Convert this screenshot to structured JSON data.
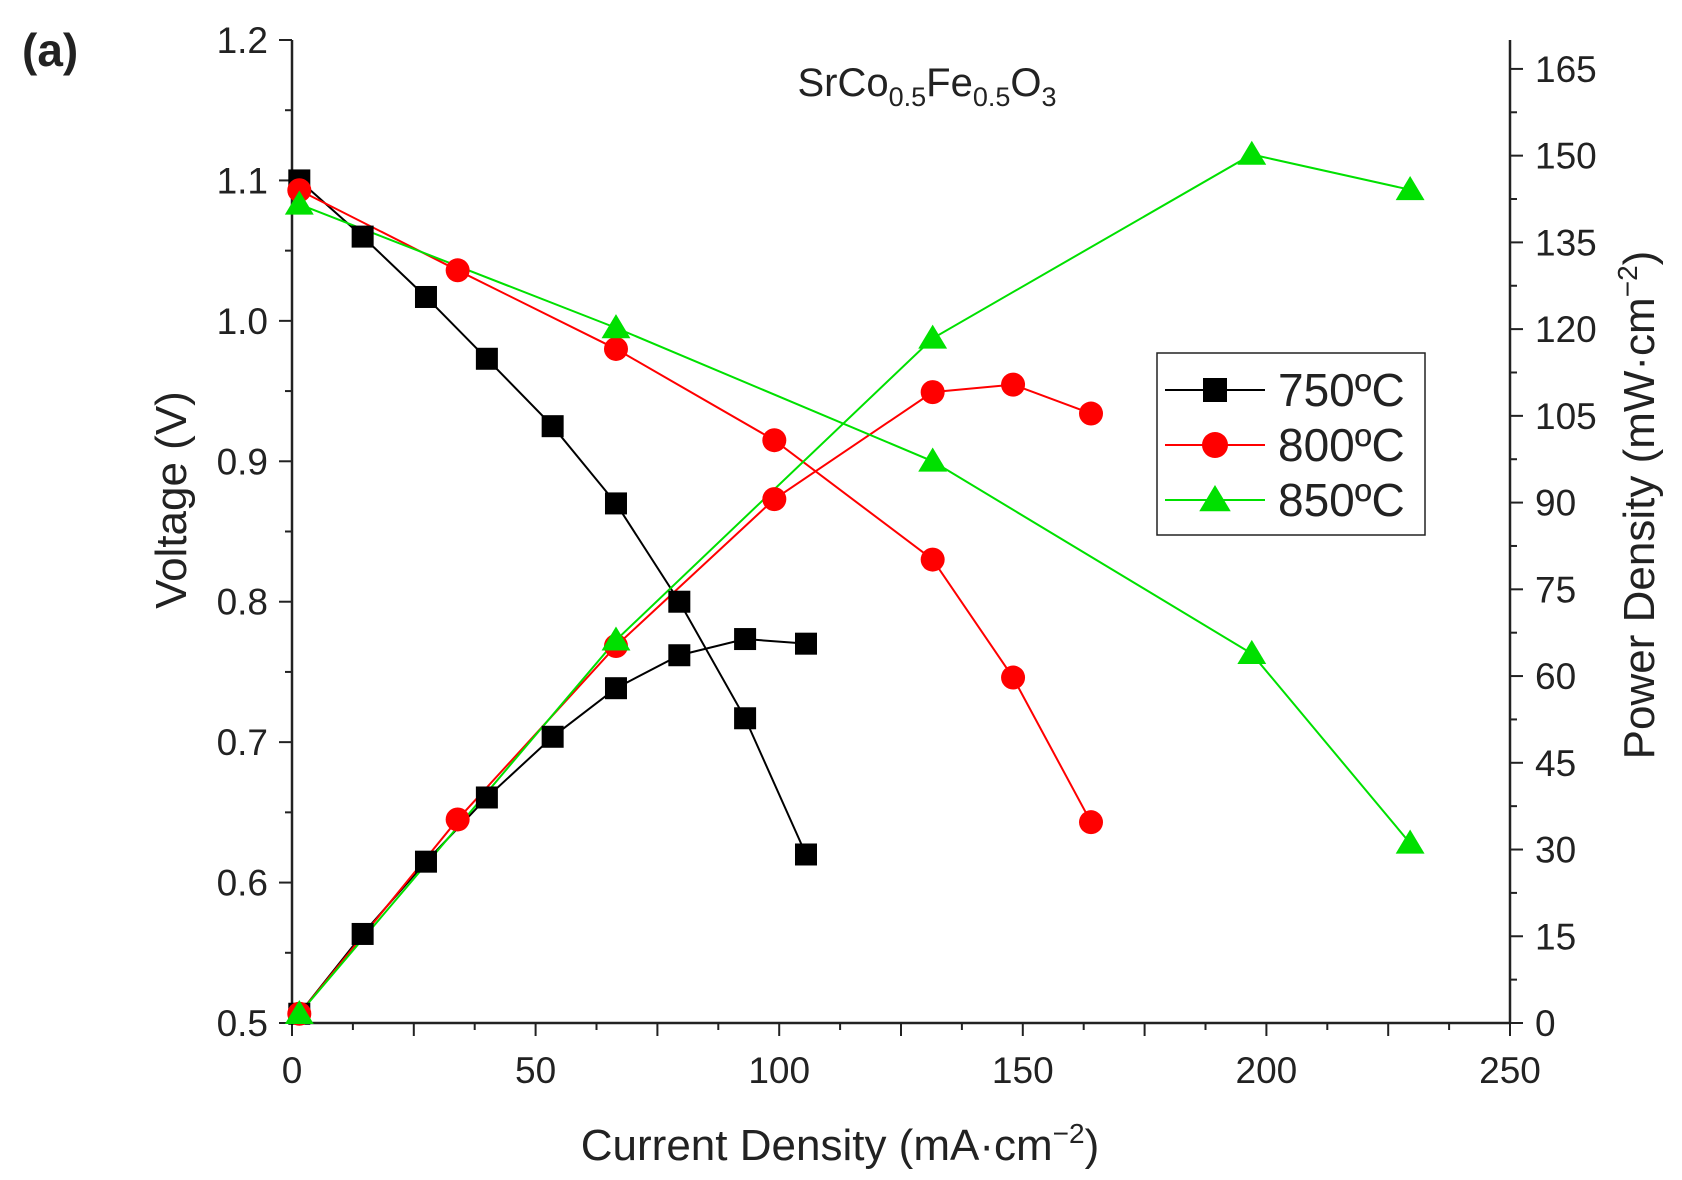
{
  "chart_data": {
    "type": "line",
    "panel_label": "(a)",
    "title": {
      "main": "SrCo",
      "sub1": "0.5",
      "mid": "Fe",
      "sub2": "0.5",
      "end": "O",
      "sub3": "3"
    },
    "xlabel": {
      "text": "Current Density (mA·cm",
      "sup": "−2",
      "close": ")"
    },
    "ylabel_left": "Voltage (V)",
    "ylabel_right": {
      "text": "Power Density (mW·cm",
      "sup": "−2",
      "close": ")"
    },
    "xlim": [
      0,
      250
    ],
    "ylim_left": [
      0.5,
      1.2
    ],
    "ylim_right": [
      0,
      170
    ],
    "x_ticks": [
      0,
      50,
      100,
      150,
      200,
      250
    ],
    "y_left_ticks": [
      0.5,
      0.6,
      0.7,
      0.8,
      0.9,
      1.0,
      1.1,
      1.2
    ],
    "y_left_tick_labels": [
      "0.5",
      "0.6",
      "0.7",
      "0.8",
      "0.9",
      "1.0",
      "1.1",
      "1.2"
    ],
    "y_right_ticks": [
      0,
      15,
      30,
      45,
      60,
      75,
      90,
      105,
      120,
      135,
      150,
      165
    ],
    "grid": false,
    "legend_position": "right-middle",
    "series": [
      {
        "name": "750ºC",
        "color": "#000000",
        "marker": "square",
        "voltage": {
          "x": [
            1.5,
            14.5,
            27.5,
            40,
            53.5,
            66.5,
            79.5,
            93,
            105.5
          ],
          "y": [
            1.1,
            1.06,
            1.017,
            0.973,
            0.925,
            0.87,
            0.8,
            0.717,
            0.62
          ]
        },
        "power": {
          "x": [
            1.5,
            14.5,
            27.5,
            40,
            53.5,
            66.5,
            79.5,
            93,
            105.5
          ],
          "y": [
            1.6,
            15.4,
            27.9,
            39.0,
            49.5,
            57.9,
            63.6,
            66.4,
            65.6
          ]
        }
      },
      {
        "name": "800ºC",
        "color": "#ff0000",
        "marker": "circle",
        "voltage": {
          "x": [
            1.5,
            34,
            66.5,
            99,
            131.5,
            148,
            164
          ],
          "y": [
            1.093,
            1.036,
            0.98,
            0.915,
            0.83,
            0.746,
            0.643
          ]
        },
        "power": {
          "x": [
            1.5,
            34,
            66.5,
            99,
            131.5,
            148,
            164
          ],
          "y": [
            1.6,
            35.2,
            65.2,
            90.6,
            109.1,
            110.4,
            105.4
          ]
        }
      },
      {
        "name": "850ºC",
        "color": "#00e000",
        "marker": "triangle",
        "voltage": {
          "x": [
            1.5,
            66.5,
            131.5,
            197,
            229.5
          ],
          "y": [
            1.083,
            0.995,
            0.9,
            0.763,
            0.628
          ]
        },
        "power": {
          "x": [
            1.5,
            66.5,
            131.5,
            197,
            229.5
          ],
          "y": [
            1.6,
            66.2,
            118.4,
            150.2,
            144.1
          ]
        }
      }
    ]
  }
}
